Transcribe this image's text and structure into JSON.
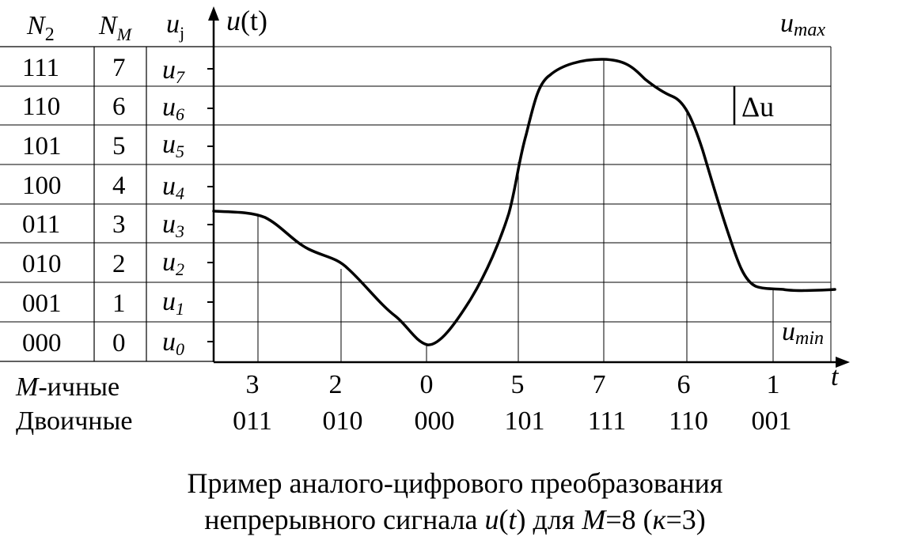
{
  "table": {
    "header": {
      "n2_main": "N",
      "n2_sub": "2",
      "nm_main": "N",
      "nm_sub": "M",
      "uj_main": "u",
      "uj_sub": "j"
    },
    "rows": [
      {
        "bin": "111",
        "m": "7",
        "u_sub": "7"
      },
      {
        "bin": "110",
        "m": "6",
        "u_sub": "6"
      },
      {
        "bin": "101",
        "m": "5",
        "u_sub": "5"
      },
      {
        "bin": "100",
        "m": "4",
        "u_sub": "4"
      },
      {
        "bin": "011",
        "m": "3",
        "u_sub": "3"
      },
      {
        "bin": "010",
        "m": "2",
        "u_sub": "2"
      },
      {
        "bin": "001",
        "m": "1",
        "u_sub": "1"
      },
      {
        "bin": "000",
        "m": "0",
        "u_sub": "0"
      }
    ],
    "u_letter": "u"
  },
  "axes": {
    "y_label_letter": "u",
    "y_label_arg": "(t)",
    "x_label": "t",
    "umax_letter": "u",
    "umax_sub": "max",
    "umin_letter": "u",
    "umin_sub": "min",
    "delta_u": "Δu"
  },
  "samples": {
    "m_ary_label_letter": "M",
    "m_ary_label_rest": "-ичные",
    "binary_label": "Двоичные",
    "m_ary": [
      "3",
      "2",
      "0",
      "5",
      "7",
      "6",
      "1"
    ],
    "binary": [
      "011",
      "010",
      "000",
      "101",
      "111",
      "110",
      "001"
    ]
  },
  "caption": {
    "line1": "Пример аналого-цифрового преобразования",
    "line2_a": "непрерывного сигнала ",
    "line2_u": "u",
    "line2_b": "(",
    "line2_t": "t",
    "line2_c": ") для ",
    "line2_M": "M",
    "line2_d": "=8 (",
    "line2_k": "к",
    "line2_e": "=3)"
  }
}
